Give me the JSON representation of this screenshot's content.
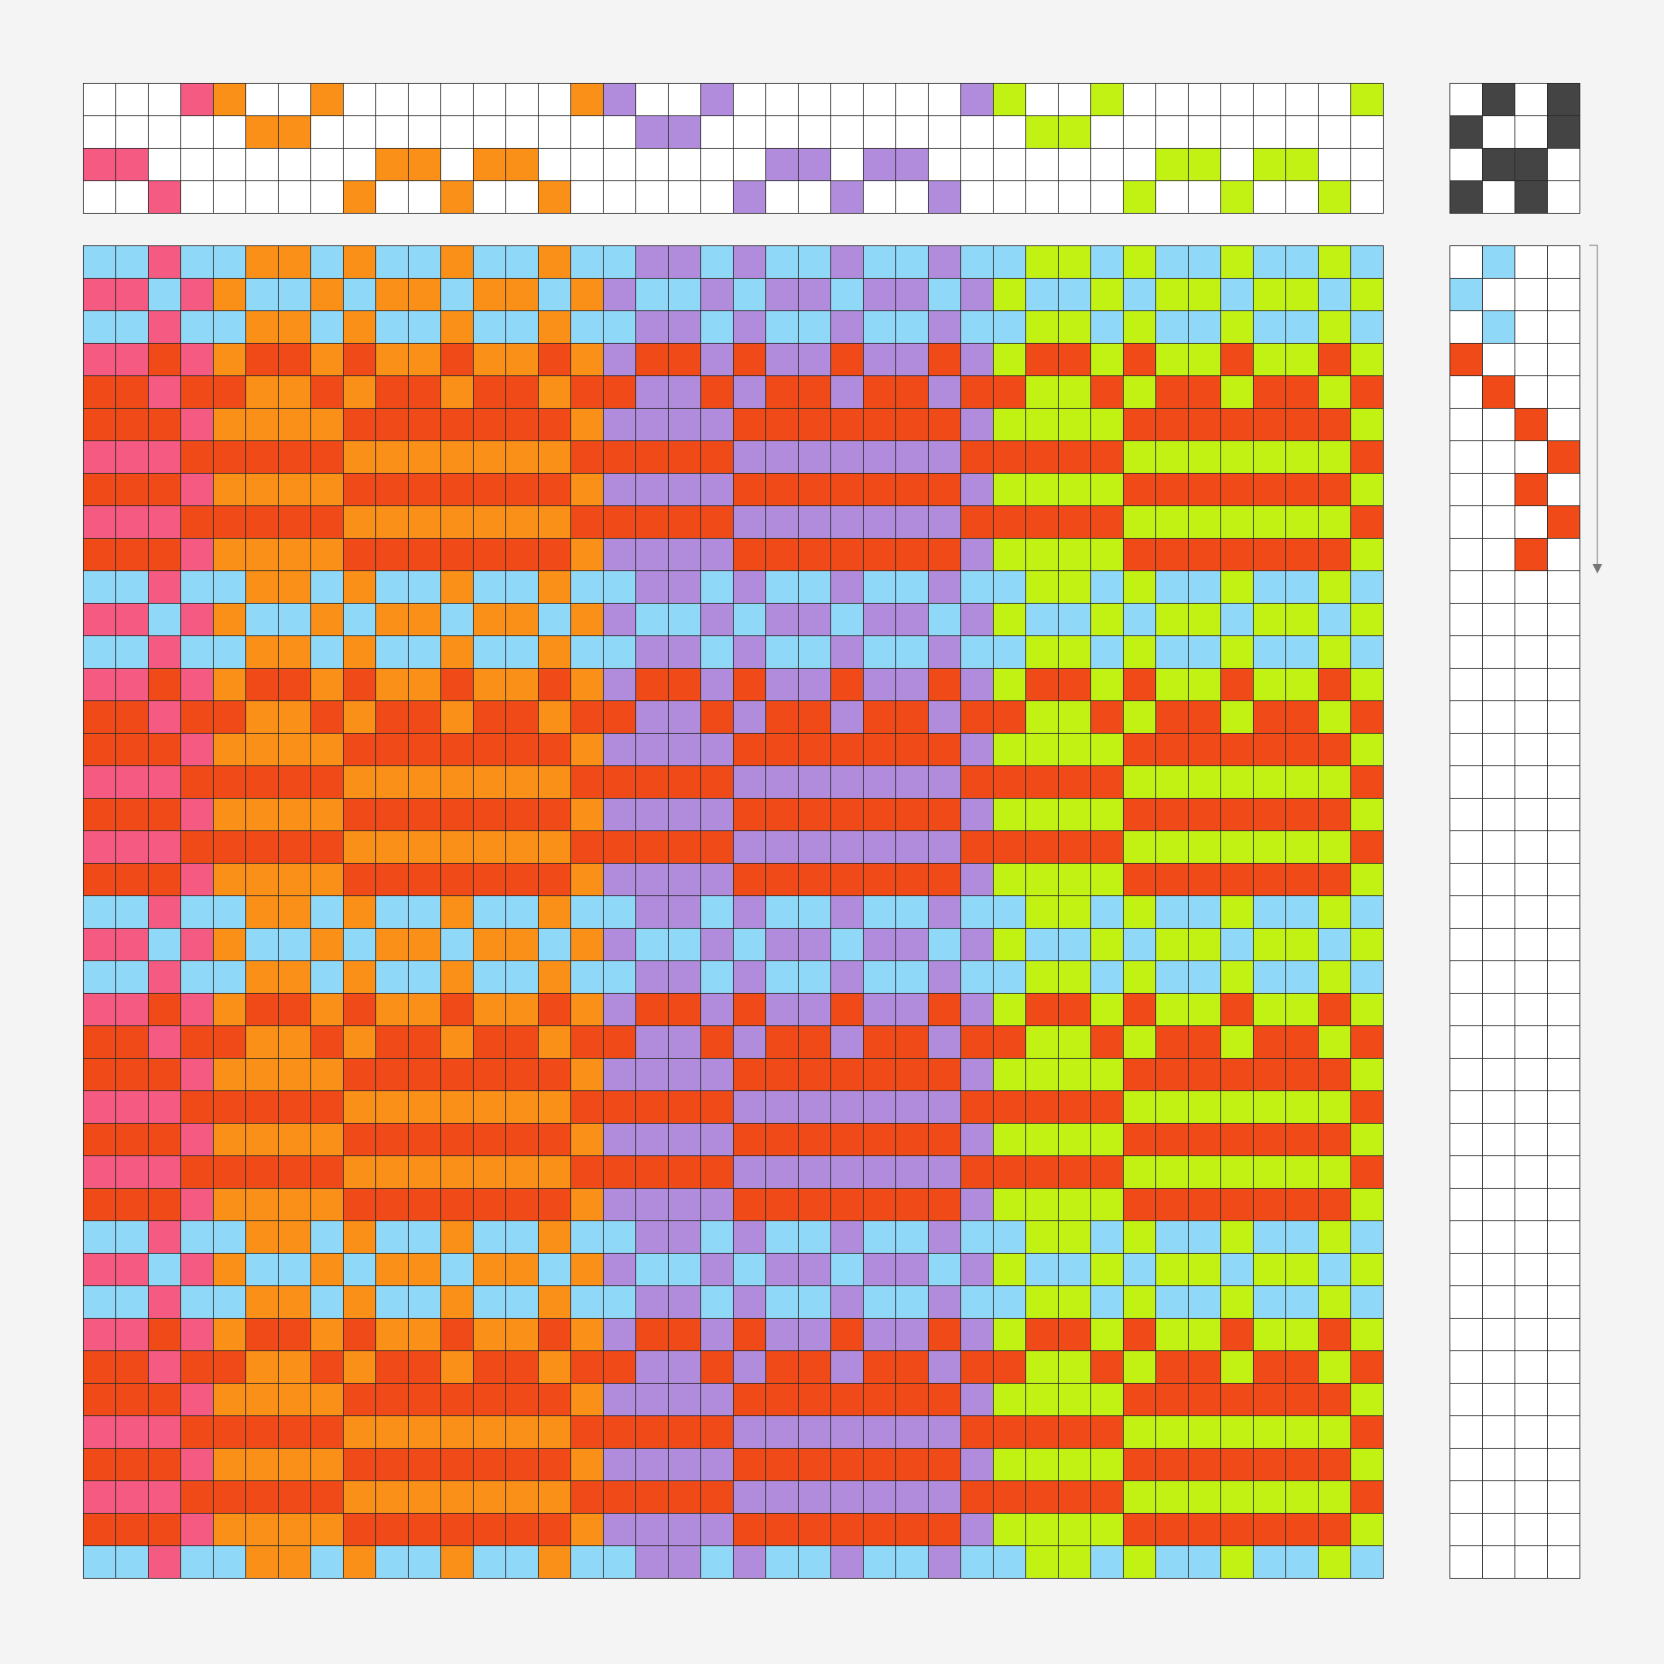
{
  "warp": {
    "shafts": [
      3,
      3,
      4,
      1,
      1,
      2,
      2,
      1,
      4,
      3,
      3,
      4,
      3,
      3,
      4,
      1,
      1,
      2,
      2,
      1,
      4,
      3,
      3,
      4,
      3,
      3,
      4,
      1,
      1,
      2,
      2,
      1,
      4,
      3,
      3,
      4,
      3,
      3,
      4,
      1
    ],
    "colors": [
      "#f45a82",
      "#f45a82",
      "#f45a82",
      "#f45a82",
      "#fb9018",
      "#fb9018",
      "#fb9018",
      "#fb9018",
      "#fb9018",
      "#fb9018",
      "#fb9018",
      "#fb9018",
      "#fb9018",
      "#fb9018",
      "#fb9018",
      "#fb9018",
      "#b18cdc",
      "#b18cdc",
      "#b18cdc",
      "#b18cdc",
      "#b18cdc",
      "#b18cdc",
      "#b18cdc",
      "#b18cdc",
      "#b18cdc",
      "#b18cdc",
      "#b18cdc",
      "#b18cdc",
      "#c2f214",
      "#c2f214",
      "#c2f214",
      "#c2f214",
      "#c2f214",
      "#c2f214",
      "#c2f214",
      "#c2f214",
      "#c2f214",
      "#c2f214",
      "#c2f214",
      "#c2f214"
    ]
  },
  "tieup": {
    "cells": [
      [
        0,
        1,
        0,
        1
      ],
      [
        1,
        0,
        0,
        1
      ],
      [
        0,
        1,
        1,
        0
      ],
      [
        1,
        0,
        1,
        0
      ]
    ],
    "color": "#444444"
  },
  "treadling": {
    "treadles": [
      2,
      1,
      2,
      1,
      2,
      3,
      4,
      3,
      4,
      3
    ],
    "colors": [
      "#8fd8f8",
      "#8fd8f8",
      "#8fd8f8",
      "#f04a18",
      "#f04a18",
      "#f04a18",
      "#f04a18",
      "#f04a18",
      "#f04a18",
      "#f04a18"
    ]
  },
  "drawdown_rows": 41
}
